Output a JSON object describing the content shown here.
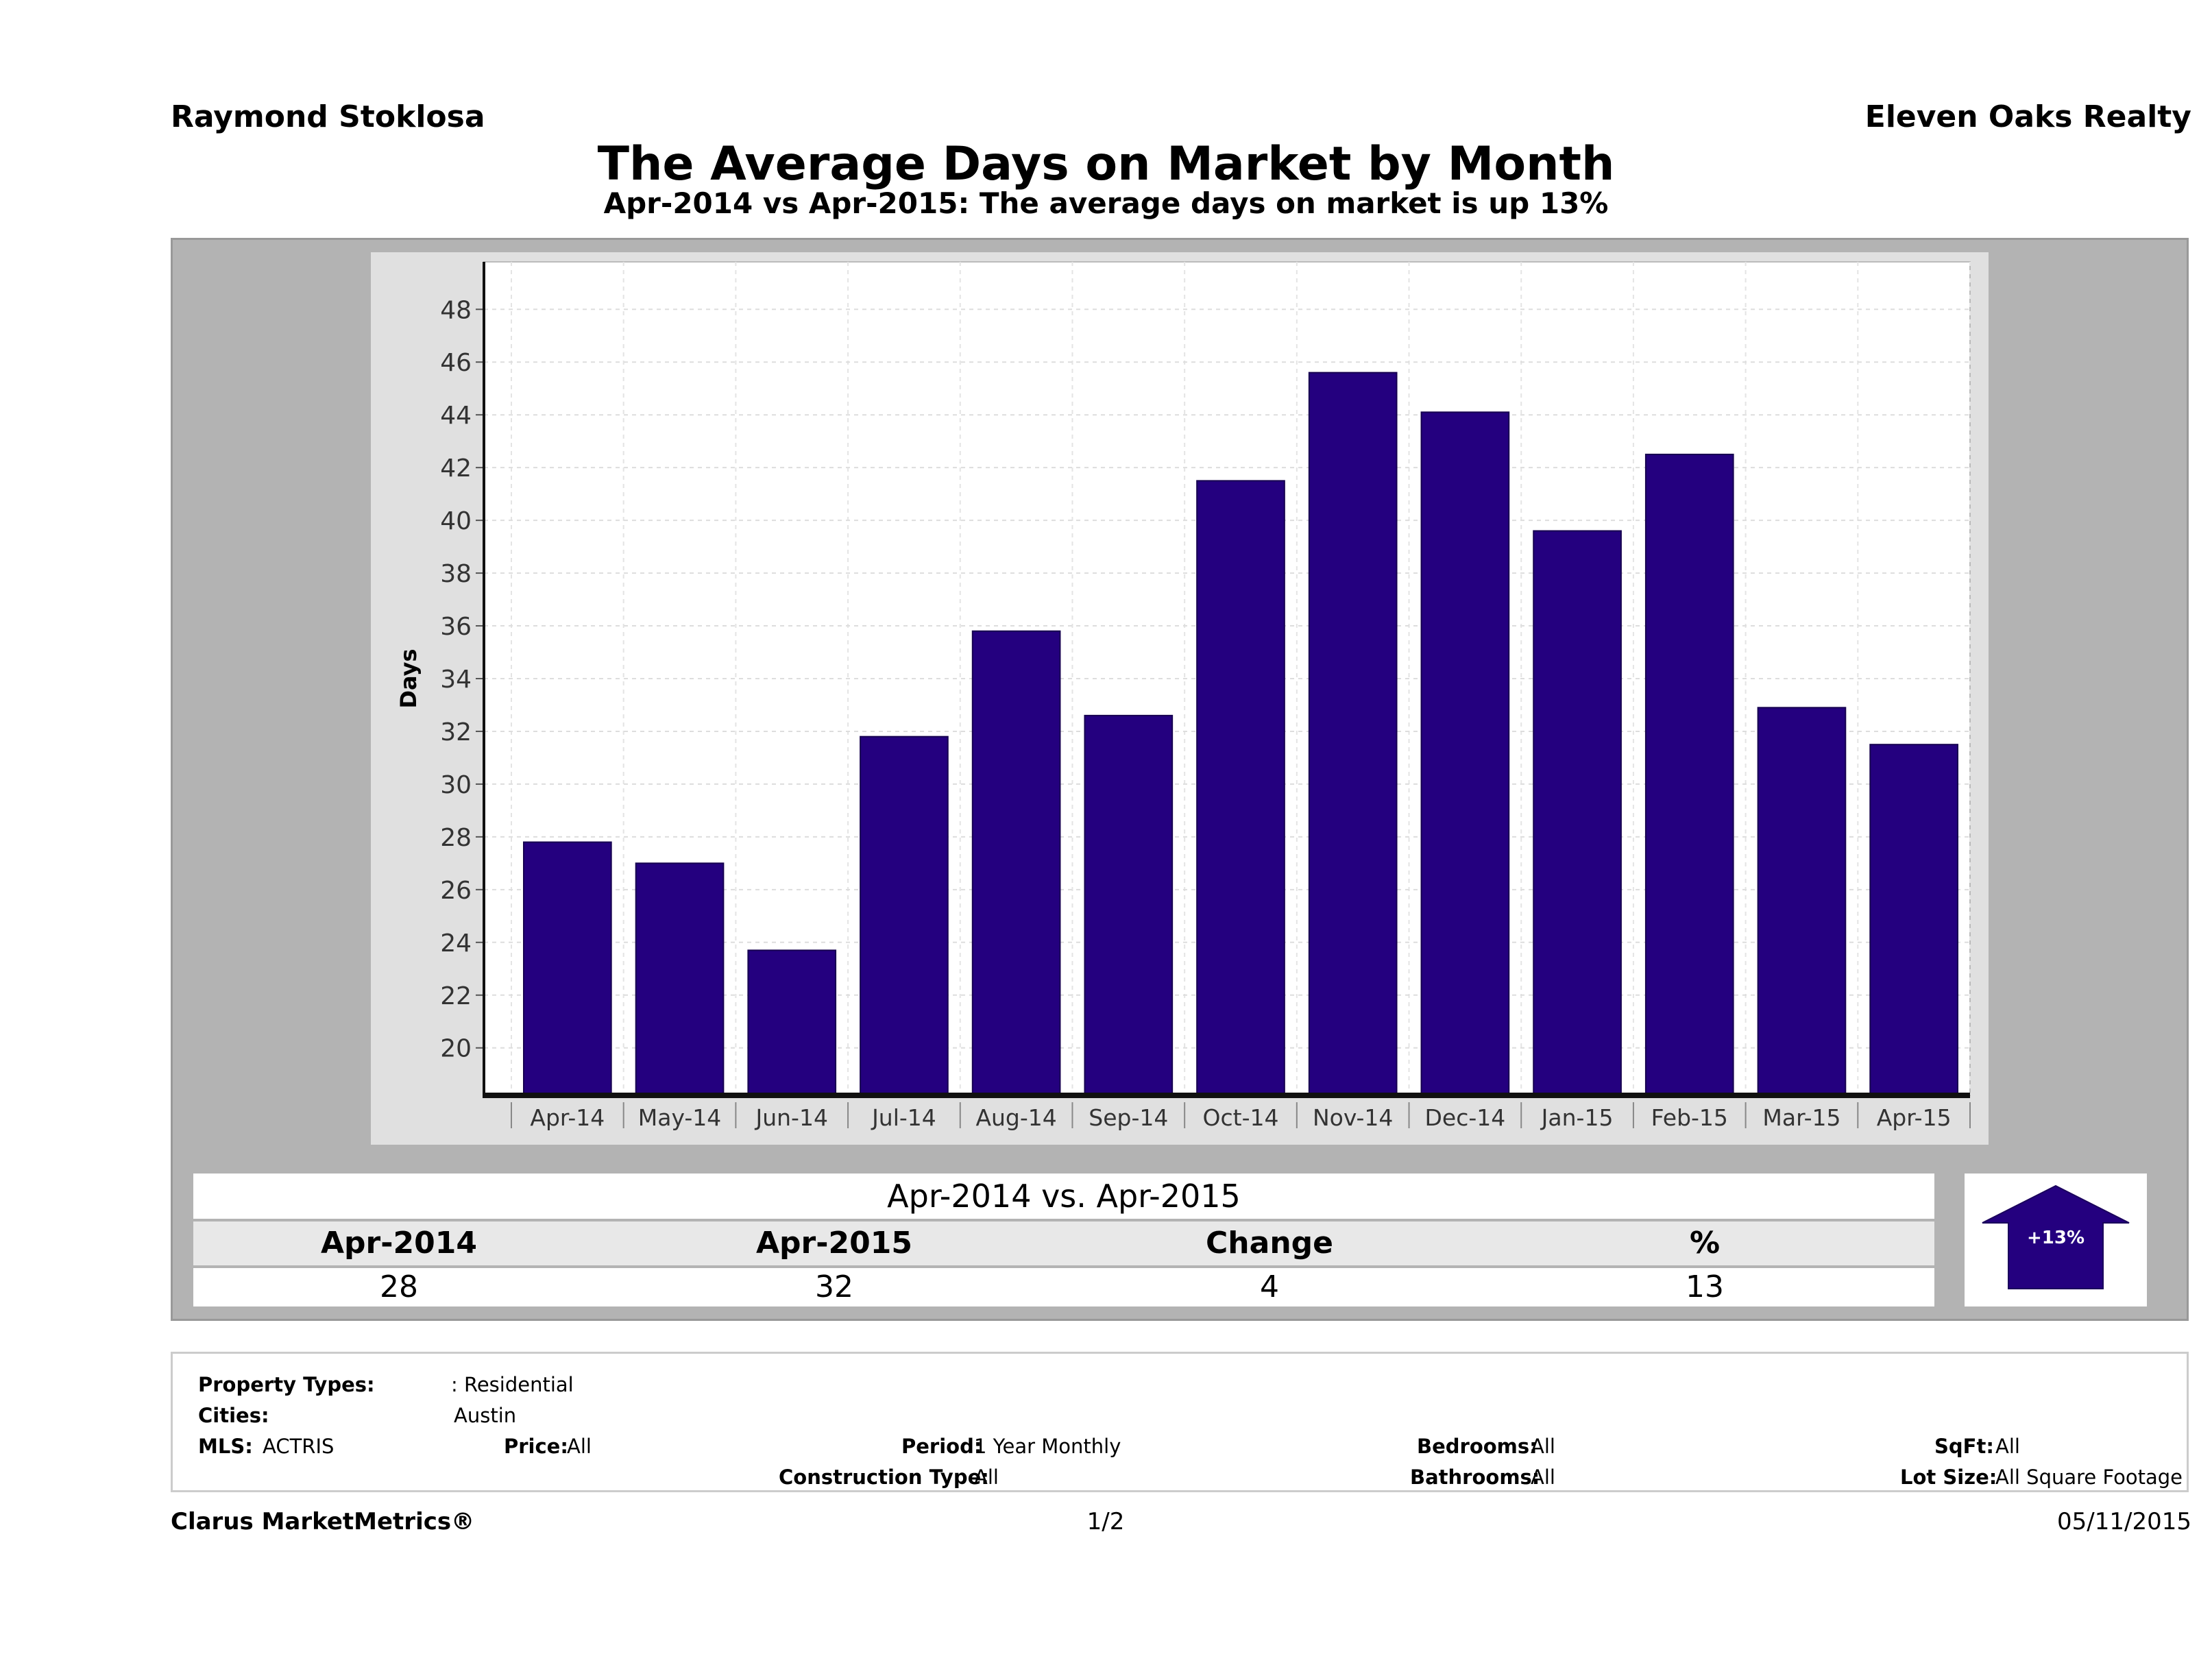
{
  "header": {
    "agent_name": "Raymond Stoklosa",
    "brokerage": "Eleven Oaks Realty",
    "title": "The Average Days on Market by Month",
    "subtitle": "Apr-2014 vs Apr-2015: The average days on market is up 13%"
  },
  "chart_data": {
    "type": "bar",
    "title": "The Average Days on Market by Month",
    "subtitle": "Apr-2014 vs Apr-2015: The average days on market is up 13%",
    "xlabel": "",
    "ylabel": "Days",
    "categories": [
      "Apr-14",
      "May-14",
      "Jun-14",
      "Jul-14",
      "Aug-14",
      "Sep-14",
      "Oct-14",
      "Nov-14",
      "Dec-14",
      "Jan-15",
      "Feb-15",
      "Mar-15",
      "Apr-15"
    ],
    "values": [
      27.8,
      27.0,
      23.7,
      31.8,
      35.8,
      32.6,
      41.5,
      45.6,
      44.1,
      39.6,
      42.5,
      32.9,
      31.5
    ],
    "ylim": [
      18.2,
      49.8
    ],
    "yticks": [
      20,
      22,
      24,
      26,
      28,
      30,
      32,
      34,
      36,
      38,
      40,
      42,
      44,
      46,
      48
    ],
    "bar_color": "#24007f",
    "grid": true
  },
  "comparison": {
    "title": "Apr-2014 vs. Apr-2015",
    "headers": [
      "Apr-2014",
      "Apr-2015",
      "Change",
      "%"
    ],
    "values": [
      "28",
      "32",
      "4",
      "13"
    ],
    "badge": "+13%",
    "badge_color": "#24007f"
  },
  "criteria": {
    "property_types_label": "Property Types:",
    "property_types_value": ": Residential",
    "cities_label": "Cities:",
    "cities_value": "Austin",
    "mls_label": "MLS:",
    "mls_value": "ACTRIS",
    "price_label": "Price:",
    "price_value": "All",
    "period_label": "Period:",
    "period_value": "1 Year Monthly",
    "construction_label": "Construction Type:",
    "construction_value": "All",
    "bedrooms_label": "Bedrooms:",
    "bedrooms_value": "All",
    "bathrooms_label": "Bathrooms:",
    "bathrooms_value": "All",
    "sqft_label": "SqFt:",
    "sqft_value": "All",
    "lotsize_label": "Lot Size:",
    "lotsize_value": "All Square Footage"
  },
  "footer": {
    "product": "Clarus MarketMetrics®",
    "page": "1/2",
    "date": "05/11/2015"
  }
}
